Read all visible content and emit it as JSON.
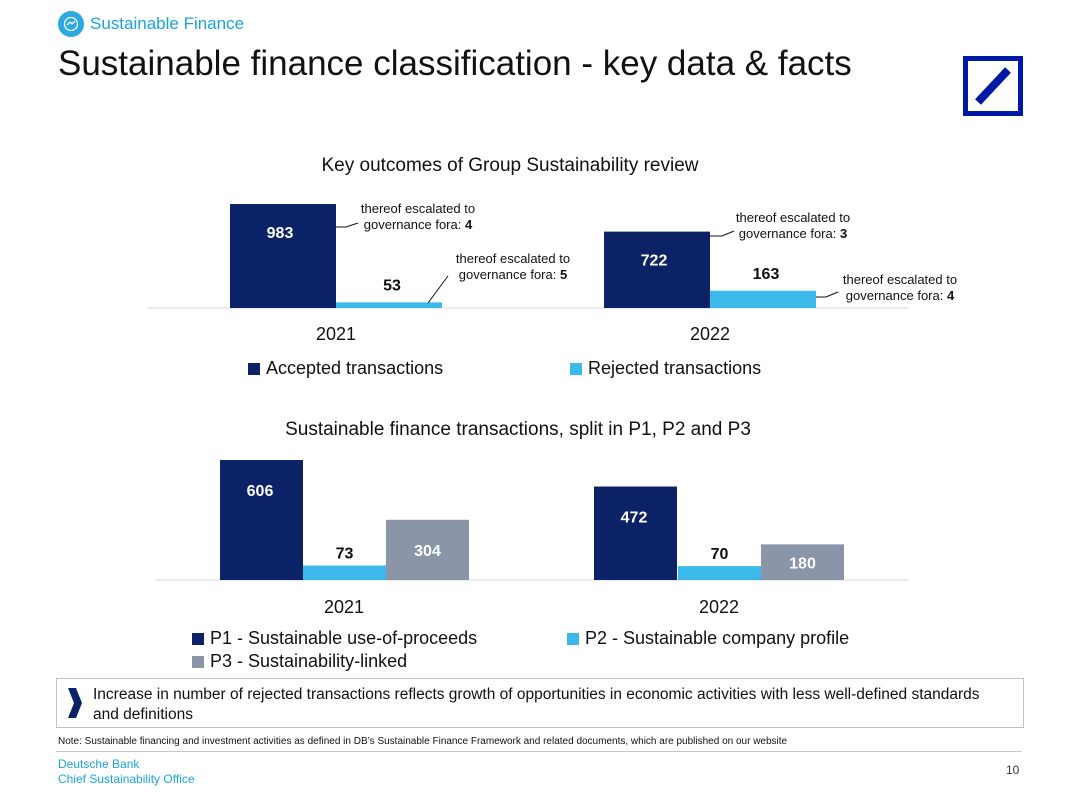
{
  "header": {
    "tag_label": "Sustainable Finance",
    "title": "Sustainable finance classification - key data & facts"
  },
  "colors": {
    "accepted": "#0c2266",
    "rejected": "#3bb9ea",
    "p3": "#8a96a8",
    "brand_blue": "#0018a8",
    "accent": "#1aa3df"
  },
  "chart_data": [
    {
      "type": "bar",
      "title": "Key outcomes of Group Sustainability review",
      "categories": [
        "2021",
        "2022"
      ],
      "series": [
        {
          "name": "Accepted transactions",
          "values": [
            983,
            722
          ]
        },
        {
          "name": "Rejected transactions",
          "values": [
            53,
            163
          ]
        }
      ],
      "annotations": [
        {
          "text": "thereof escalated to",
          "text2": "governance fora: ",
          "value": "4"
        },
        {
          "text": "thereof escalated to",
          "text2": "governance fora: ",
          "value": "5"
        },
        {
          "text": "thereof escalated to",
          "text2": "governance fora: ",
          "value": "3"
        },
        {
          "text": "thereof escalated to",
          "text2": "governance fora: ",
          "value": "4"
        }
      ],
      "legend_position": "bottom"
    },
    {
      "type": "bar",
      "title": "Sustainable finance transactions, split in P1, P2 and P3",
      "categories": [
        "2021",
        "2022"
      ],
      "series": [
        {
          "name": "P1 - Sustainable use-of-proceeds",
          "values": [
            606,
            472
          ]
        },
        {
          "name": "P2 - Sustainable company profile",
          "values": [
            73,
            70
          ]
        },
        {
          "name": "P3 - Sustainability-linked",
          "values": [
            304,
            180
          ]
        }
      ],
      "legend_position": "bottom"
    }
  ],
  "callout": {
    "text": "Increase in number of rejected transactions reflects growth of opportunities in economic activities with less well-defined standards and definitions"
  },
  "note": "Note: Sustainable financing and investment activities as defined in DB’s Sustainable Finance Framework and related documents, which are published on our website",
  "footer": {
    "company": "Deutsche Bank",
    "office": "Chief Sustainability Office",
    "page_number": "10"
  }
}
